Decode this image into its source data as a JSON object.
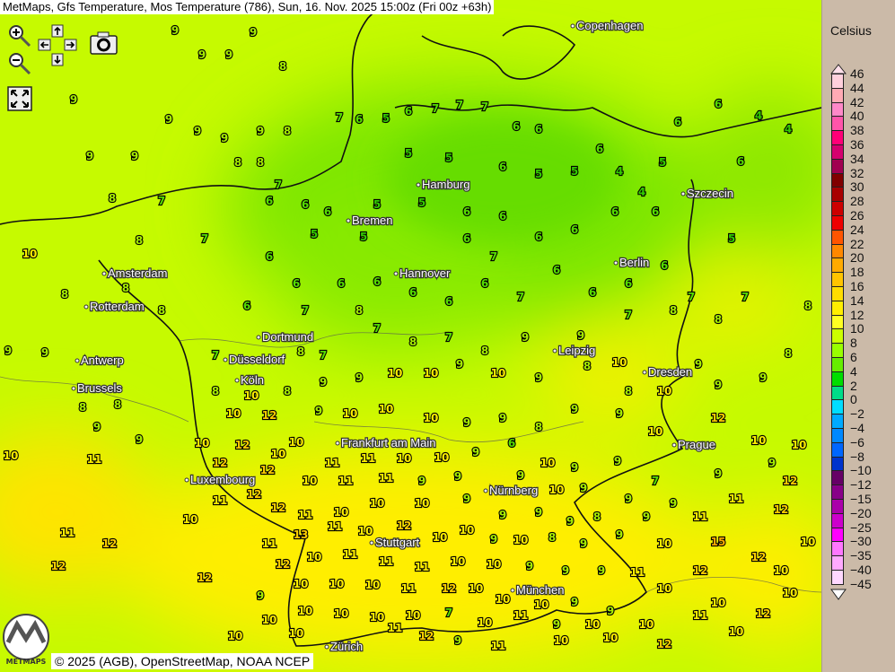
{
  "title": "MetMaps, Gfs Temperature, Mos Temperature (786), Sun, 16. Nov. 2025 15:00z (Fri 00z +63h)",
  "controls": {
    "zoom_in": "zoom-in-icon",
    "zoom_out": "zoom-out-icon",
    "pan": "pan-arrows-icon",
    "screenshot": "camera-icon",
    "fullscreen": "fullscreen-icon"
  },
  "legend": {
    "title": "Celsius",
    "labels": [
      "46",
      "44",
      "42",
      "40",
      "38",
      "36",
      "34",
      "32",
      "30",
      "28",
      "26",
      "24",
      "22",
      "20",
      "18",
      "16",
      "14",
      "12",
      "10",
      "8",
      "6",
      "4",
      "2",
      "0",
      "−2",
      "−4",
      "−6",
      "−8",
      "−10",
      "−12",
      "−15",
      "−20",
      "−25",
      "−30",
      "−35",
      "−40",
      "−45"
    ],
    "colors": [
      "#ffd0dc",
      "#ffaab4",
      "#ff88c8",
      "#ff55aa",
      "#ff0077",
      "#d4006e",
      "#a00050",
      "#800000",
      "#a80000",
      "#cc0000",
      "#ee0000",
      "#ff5500",
      "#ff8800",
      "#ffaa00",
      "#ffc400",
      "#ffdd00",
      "#ffee00",
      "#ffff22",
      "#ccff00",
      "#99ff00",
      "#66ee00",
      "#00dd00",
      "#00dd88",
      "#00ddff",
      "#00aaff",
      "#0088ff",
      "#0066ff",
      "#0033cc",
      "#660066",
      "#880088",
      "#aa00aa",
      "#cc00cc",
      "#ff00ff",
      "#ff77ff",
      "#ffaaff",
      "#ffd8ff"
    ]
  },
  "cities": [
    "Copenhagen",
    "Hamburg",
    "Szczecin",
    "Bremen",
    "Amsterdam",
    "Hannover",
    "Berlin",
    "Rotterdam",
    "Dortmund",
    "Antwerp",
    "Düsseldorf",
    "Leipzig",
    "Dresden",
    "Brussels",
    "Köln",
    "Frankfurt am Main",
    "Prague",
    "Luxembourg",
    "Nürnberg",
    "Stuttgart",
    "München",
    "Zürich"
  ],
  "station_values": [
    9,
    9,
    9,
    9,
    8,
    9,
    9,
    9,
    9,
    9,
    8,
    9,
    9,
    8,
    8,
    7,
    7,
    8,
    7,
    8,
    10,
    8,
    8,
    8,
    9,
    9,
    8,
    8,
    9,
    10,
    11,
    9,
    11,
    12,
    12,
    10,
    12,
    7,
    6,
    5,
    6,
    7,
    7,
    7,
    6,
    6,
    5,
    5,
    6,
    5,
    5,
    6,
    4,
    4,
    5,
    6,
    6,
    4,
    4,
    6,
    5,
    6,
    6,
    5,
    5,
    6,
    6,
    6,
    6,
    6,
    6,
    6,
    5,
    5,
    6,
    7,
    6,
    6,
    6,
    6,
    6,
    6,
    6,
    7,
    6,
    6,
    6,
    6,
    7,
    7,
    6,
    7,
    8,
    7,
    8,
    8,
    8,
    7,
    8,
    7,
    7,
    8,
    7,
    8,
    9,
    9,
    10,
    9,
    8,
    9,
    9,
    8,
    10,
    8,
    9,
    9,
    10,
    10,
    9,
    10,
    9,
    8,
    8,
    10,
    12,
    10,
    12,
    9,
    10,
    10,
    10,
    9,
    9,
    8,
    9,
    9,
    10,
    10,
    10,
    10,
    12,
    10,
    10,
    11,
    11,
    10,
    10,
    9,
    6,
    10,
    9,
    9,
    7,
    9,
    9,
    12,
    12,
    10,
    11,
    11,
    9,
    9,
    9,
    10,
    9,
    9,
    9,
    11,
    12,
    11,
    12,
    12,
    11,
    10,
    10,
    10,
    9,
    9,
    9,
    9,
    8,
    9,
    11,
    12,
    11,
    13,
    11,
    10,
    12,
    10,
    10,
    9,
    10,
    8,
    9,
    9,
    10,
    15,
    12,
    10,
    12,
    10,
    11,
    11,
    11,
    10,
    10,
    9,
    9,
    9,
    11,
    12,
    10,
    9,
    10,
    10,
    10,
    11,
    12,
    10,
    10,
    10,
    9,
    9,
    10,
    10,
    12,
    10,
    10,
    10,
    10,
    10,
    10,
    7,
    10,
    11,
    9,
    10,
    10,
    11,
    10,
    10,
    10,
    11,
    12,
    9,
    11,
    10,
    10,
    12
  ],
  "copyright": "© 2025 (AGB), OpenStreetMap, NOAA NCEP",
  "logo_text": "METMAPS"
}
